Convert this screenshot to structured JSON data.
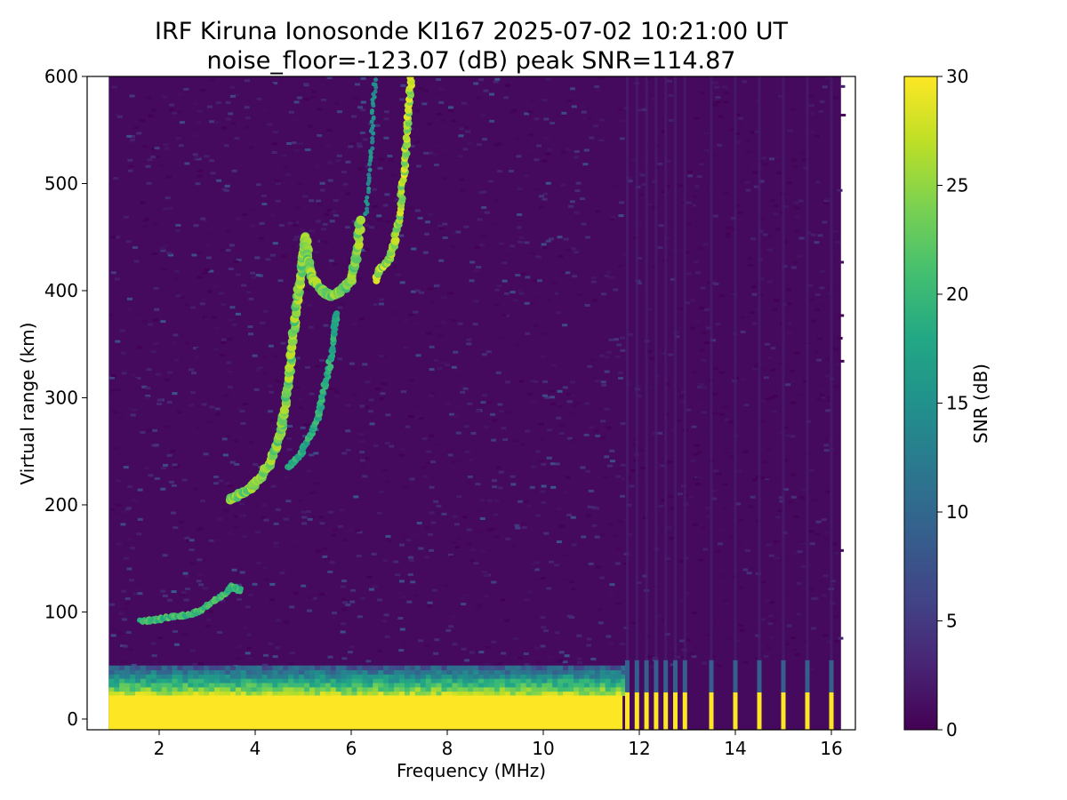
{
  "chart_data": {
    "type": "heatmap",
    "title_line1": "IRF Kiruna Ionosonde KI167 2025-07-02 10:21:00  UT",
    "title_line2": "noise_floor=-123.07 (dB) peak SNR=114.87",
    "xlabel": "Frequency (MHz)",
    "ylabel": "Virtual range (km)",
    "xlim": [
      0.5,
      16.5
    ],
    "ylim": [
      -10,
      600
    ],
    "xticks": [
      2,
      4,
      6,
      8,
      10,
      12,
      14,
      16
    ],
    "yticks": [
      0,
      100,
      200,
      300,
      400,
      500,
      600
    ],
    "data_freq_range": [
      0.95,
      16.2
    ],
    "colorbar": {
      "label": "SNR (dB)",
      "range": [
        0,
        30
      ],
      "ticks": [
        0,
        5,
        10,
        15,
        20,
        25,
        30
      ],
      "colormap": "viridis"
    },
    "features": {
      "ground_clutter": {
        "freq_range": [
          0.95,
          11.65
        ],
        "range_km": [
          -10,
          22
        ],
        "snr_db": 30
      },
      "near_clutter_band": {
        "freq_range": [
          0.95,
          11.65
        ],
        "range_km": [
          22,
          50
        ],
        "snr_db": 20
      },
      "discrete_lines": {
        "freqs": [
          11.75,
          11.95,
          12.15,
          12.35,
          12.55,
          12.75,
          12.95,
          13.5,
          14.0,
          14.5,
          15.0,
          15.5,
          16.0
        ],
        "range_km": [
          -10,
          25
        ],
        "snr_db": 30
      },
      "e_layer_trace": [
        {
          "f": 1.6,
          "h": 92
        },
        {
          "f": 1.8,
          "h": 92
        },
        {
          "f": 2.0,
          "h": 93
        },
        {
          "f": 2.2,
          "h": 95
        },
        {
          "f": 2.4,
          "h": 96
        },
        {
          "f": 2.6,
          "h": 97
        },
        {
          "f": 2.8,
          "h": 100
        },
        {
          "f": 3.0,
          "h": 106
        },
        {
          "f": 3.2,
          "h": 112
        },
        {
          "f": 3.4,
          "h": 118
        },
        {
          "f": 3.5,
          "h": 124
        },
        {
          "f": 3.6,
          "h": 122
        },
        {
          "f": 3.7,
          "h": 120
        }
      ],
      "f_layer_o_trace": [
        {
          "f": 3.5,
          "h": 205
        },
        {
          "f": 3.7,
          "h": 210
        },
        {
          "f": 3.9,
          "h": 215
        },
        {
          "f": 4.1,
          "h": 225
        },
        {
          "f": 4.3,
          "h": 238
        },
        {
          "f": 4.5,
          "h": 260
        },
        {
          "f": 4.6,
          "h": 285
        },
        {
          "f": 4.7,
          "h": 320
        },
        {
          "f": 4.8,
          "h": 360
        },
        {
          "f": 4.9,
          "h": 400
        },
        {
          "f": 5.0,
          "h": 430
        },
        {
          "f": 5.05,
          "h": 450
        },
        {
          "f": 5.1,
          "h": 430
        },
        {
          "f": 5.2,
          "h": 410
        },
        {
          "f": 5.4,
          "h": 400
        },
        {
          "f": 5.6,
          "h": 395
        },
        {
          "f": 5.8,
          "h": 400
        },
        {
          "f": 6.0,
          "h": 410
        },
        {
          "f": 6.1,
          "h": 430
        },
        {
          "f": 6.2,
          "h": 470
        }
      ],
      "f_layer_x_trace": [
        {
          "f": 4.7,
          "h": 235
        },
        {
          "f": 4.9,
          "h": 245
        },
        {
          "f": 5.1,
          "h": 260
        },
        {
          "f": 5.3,
          "h": 280
        },
        {
          "f": 5.4,
          "h": 300
        },
        {
          "f": 5.55,
          "h": 330
        },
        {
          "f": 5.65,
          "h": 365
        },
        {
          "f": 5.7,
          "h": 380
        }
      ],
      "f2_high_trace": [
        {
          "f": 6.5,
          "h": 410
        },
        {
          "f": 6.6,
          "h": 420
        },
        {
          "f": 6.8,
          "h": 430
        },
        {
          "f": 6.9,
          "h": 445
        },
        {
          "f": 7.0,
          "h": 470
        },
        {
          "f": 7.1,
          "h": 510
        },
        {
          "f": 7.15,
          "h": 540
        },
        {
          "f": 7.2,
          "h": 570
        },
        {
          "f": 7.25,
          "h": 600
        }
      ],
      "f2_high_weak": [
        {
          "f": 6.3,
          "h": 470
        },
        {
          "f": 6.4,
          "h": 520
        },
        {
          "f": 6.45,
          "h": 560
        },
        {
          "f": 6.5,
          "h": 600
        }
      ]
    }
  }
}
